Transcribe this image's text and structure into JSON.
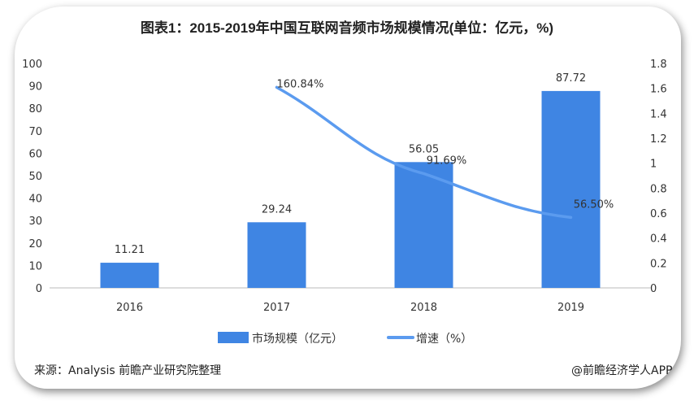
{
  "chart_data": {
    "type": "bar+line",
    "title": "图表1：2015-2019年中国互联网音频市场规模情况(单位：亿元，%)",
    "categories": [
      "2016",
      "2017",
      "2018",
      "2019"
    ],
    "series": [
      {
        "name": "市场规模（亿元）",
        "type": "bar",
        "axis": "left",
        "values": [
          11.21,
          29.24,
          56.05,
          87.72
        ],
        "labels": [
          "11.21",
          "29.24",
          "56.05",
          "87.72"
        ],
        "color": "#3f85e3"
      },
      {
        "name": "增速（%）",
        "type": "line",
        "axis": "right",
        "values": [
          null,
          1.6084,
          0.9169,
          0.565
        ],
        "labels": [
          "",
          "160.84%",
          "91.69%",
          "56.50%"
        ],
        "color": "#5b9bef"
      }
    ],
    "y_left": {
      "range": [
        0,
        100
      ],
      "ticks": [
        "0",
        "10",
        "20",
        "30",
        "40",
        "50",
        "60",
        "70",
        "80",
        "90",
        "100"
      ]
    },
    "y_right": {
      "range": [
        0,
        1.8
      ],
      "ticks": [
        "0",
        "0.2",
        "0.4",
        "0.6",
        "0.8",
        "1",
        "1.2",
        "1.4",
        "1.6",
        "1.8"
      ]
    },
    "grid": false,
    "legend": "bottom"
  },
  "footer": {
    "source": "资料来源：Analysis 前瞻产业研究院整理",
    "credit": "@前瞻经济学人APP"
  }
}
